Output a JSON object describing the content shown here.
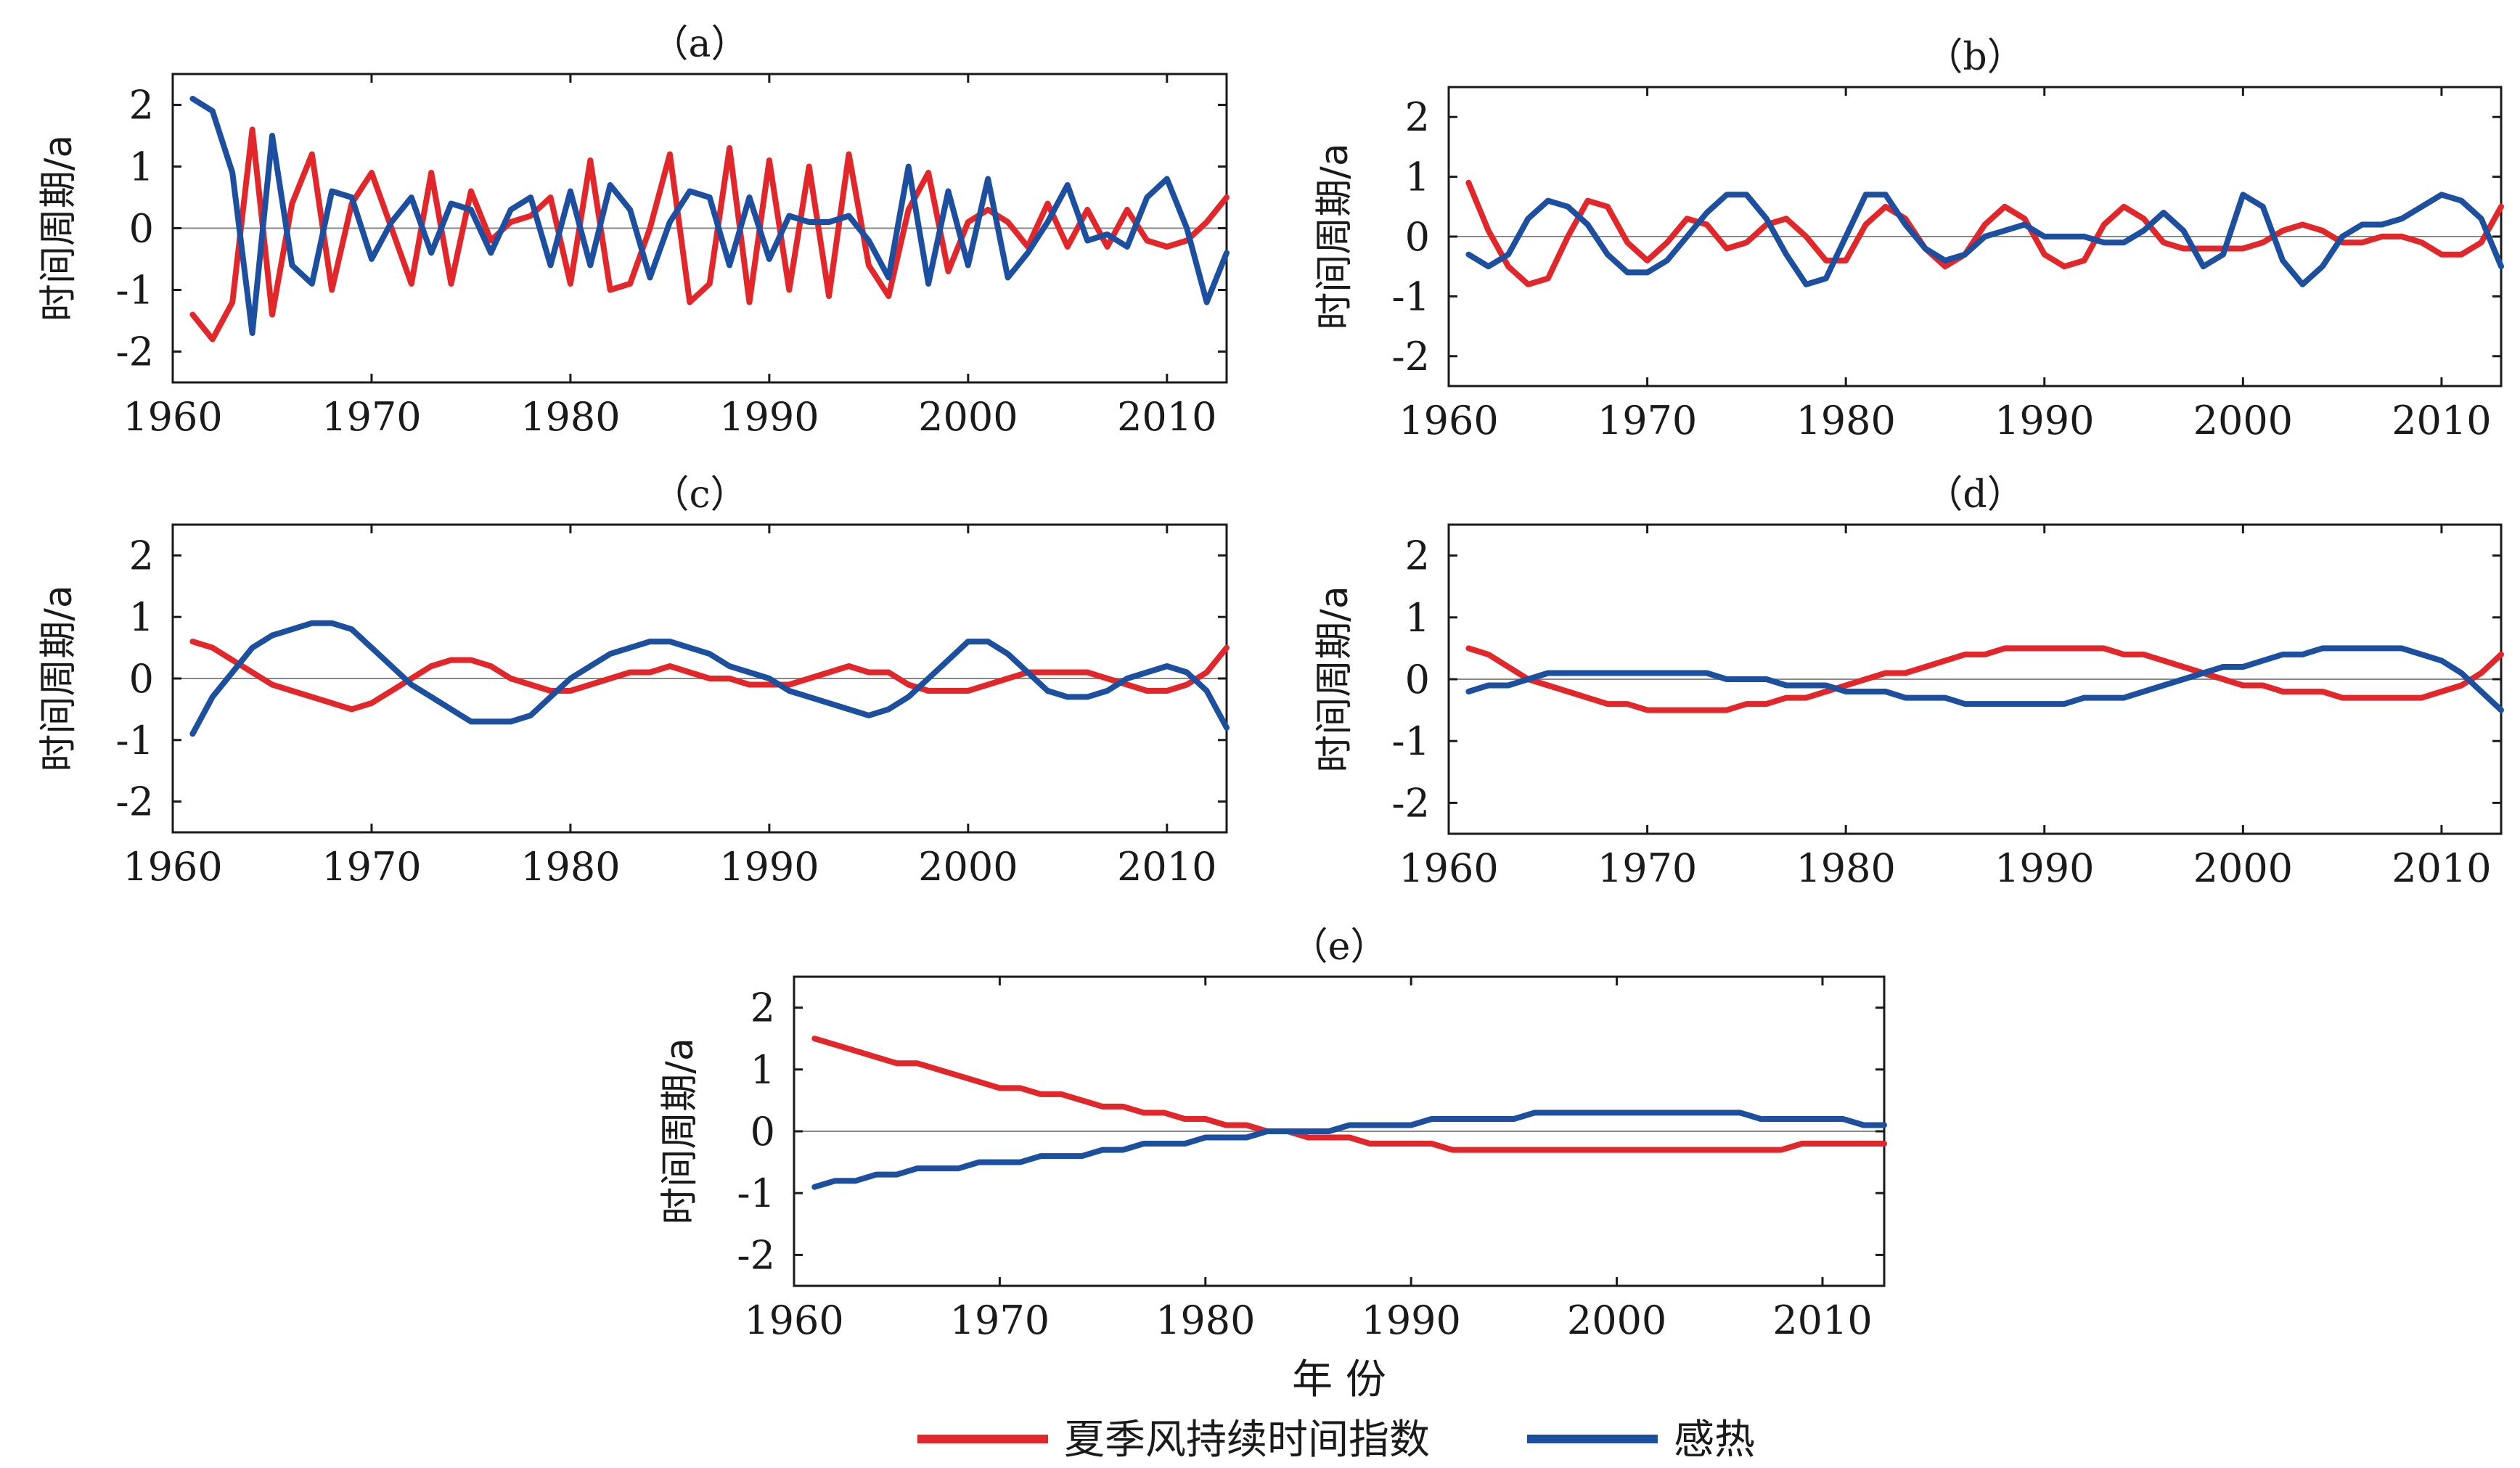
{
  "chart_data": [
    {
      "type": "line",
      "title": "（a）",
      "ylabel": "时间周期/a",
      "xlabel": "",
      "xlim": [
        1960,
        2013
      ],
      "ylim": [
        -2.5,
        2.5
      ],
      "x_ticks": [
        1960,
        1970,
        1980,
        1990,
        2000,
        2010
      ],
      "y_ticks": [
        -2,
        -1,
        0,
        1,
        2
      ],
      "x": [
        1961,
        1962,
        1963,
        1964,
        1965,
        1966,
        1967,
        1968,
        1969,
        1970,
        1971,
        1972,
        1973,
        1974,
        1975,
        1976,
        1977,
        1978,
        1979,
        1980,
        1981,
        1982,
        1983,
        1984,
        1985,
        1986,
        1987,
        1988,
        1989,
        1990,
        1991,
        1992,
        1993,
        1994,
        1995,
        1996,
        1997,
        1998,
        1999,
        2000,
        2001,
        2002,
        2003,
        2004,
        2005,
        2006,
        2007,
        2008,
        2009,
        2010,
        2011,
        2012,
        2013
      ],
      "series": [
        {
          "name": "夏季风持续时间指数",
          "color": "#e3262a",
          "values": [
            -1.4,
            -1.8,
            -1.2,
            1.6,
            -1.4,
            0.4,
            1.2,
            -1.0,
            0.4,
            0.9,
            0.0,
            -0.9,
            0.9,
            -0.9,
            0.6,
            -0.2,
            0.1,
            0.2,
            0.5,
            -0.9,
            1.1,
            -1.0,
            -0.9,
            0.0,
            1.2,
            -1.2,
            -0.9,
            1.3,
            -1.2,
            1.1,
            -1.0,
            1.0,
            -1.1,
            1.2,
            -0.6,
            -1.1,
            0.3,
            0.9,
            -0.7,
            0.1,
            0.3,
            0.1,
            -0.3,
            0.4,
            -0.3,
            0.3,
            -0.3,
            0.3,
            -0.2,
            -0.3,
            -0.2,
            0.1,
            0.5
          ]
        },
        {
          "name": "感热",
          "color": "#1d4fa0",
          "values": [
            2.1,
            1.9,
            0.9,
            -1.7,
            1.5,
            -0.6,
            -0.9,
            0.6,
            0.5,
            -0.5,
            0.1,
            0.5,
            -0.4,
            0.4,
            0.3,
            -0.4,
            0.3,
            0.5,
            -0.6,
            0.6,
            -0.6,
            0.7,
            0.3,
            -0.8,
            0.1,
            0.6,
            0.5,
            -0.6,
            0.5,
            -0.5,
            0.2,
            0.1,
            0.1,
            0.2,
            -0.2,
            -0.8,
            1.0,
            -0.9,
            0.6,
            -0.6,
            0.8,
            -0.8,
            -0.4,
            0.1,
            0.7,
            -0.2,
            -0.1,
            -0.3,
            0.5,
            0.8,
            0.0,
            -1.2,
            -0.4
          ]
        }
      ]
    },
    {
      "type": "line",
      "title": "（b）",
      "ylabel": "时间周期/a",
      "xlabel": "",
      "xlim": [
        1960,
        2013
      ],
      "ylim": [
        -2.5,
        2.5
      ],
      "x_ticks": [
        1960,
        1970,
        1980,
        1990,
        2000,
        2010
      ],
      "y_ticks": [
        -2,
        -1,
        0,
        1,
        2
      ],
      "x": [
        1961,
        1962,
        1963,
        1964,
        1965,
        1966,
        1967,
        1968,
        1969,
        1970,
        1971,
        1972,
        1973,
        1974,
        1975,
        1976,
        1977,
        1978,
        1979,
        1980,
        1981,
        1982,
        1983,
        1984,
        1985,
        1986,
        1987,
        1988,
        1989,
        1990,
        1991,
        1992,
        1993,
        1994,
        1995,
        1996,
        1997,
        1998,
        1999,
        2000,
        2001,
        2002,
        2003,
        2004,
        2005,
        2006,
        2007,
        2008,
        2009,
        2010,
        2011,
        2012,
        2013
      ],
      "series": [
        {
          "name": "夏季风持续时间指数",
          "color": "#e3262a",
          "values": [
            0.9,
            0.1,
            -0.5,
            -0.8,
            -0.7,
            0.0,
            0.6,
            0.5,
            -0.1,
            -0.4,
            -0.1,
            0.3,
            0.2,
            -0.2,
            -0.1,
            0.2,
            0.3,
            0.0,
            -0.4,
            -0.4,
            0.2,
            0.5,
            0.3,
            -0.2,
            -0.5,
            -0.3,
            0.2,
            0.5,
            0.3,
            -0.3,
            -0.5,
            -0.4,
            0.2,
            0.5,
            0.3,
            -0.1,
            -0.2,
            -0.2,
            -0.2,
            -0.2,
            -0.1,
            0.1,
            0.2,
            0.1,
            -0.1,
            -0.1,
            0.0,
            0.0,
            -0.1,
            -0.3,
            -0.3,
            -0.1,
            0.5
          ]
        },
        {
          "name": "感热",
          "color": "#1d4fa0",
          "values": [
            -0.3,
            -0.5,
            -0.3,
            0.3,
            0.6,
            0.5,
            0.2,
            -0.3,
            -0.6,
            -0.6,
            -0.4,
            0.0,
            0.4,
            0.7,
            0.7,
            0.3,
            -0.3,
            -0.8,
            -0.7,
            0.0,
            0.7,
            0.7,
            0.2,
            -0.2,
            -0.4,
            -0.3,
            0.0,
            0.1,
            0.2,
            0.0,
            0.0,
            0.0,
            -0.1,
            -0.1,
            0.1,
            0.4,
            0.1,
            -0.5,
            -0.3,
            0.7,
            0.5,
            -0.4,
            -0.8,
            -0.5,
            0.0,
            0.2,
            0.2,
            0.3,
            0.5,
            0.7,
            0.6,
            0.3,
            -0.5
          ]
        }
      ]
    },
    {
      "type": "line",
      "title": "（c）",
      "ylabel": "时间周期/a",
      "xlabel": "",
      "xlim": [
        1960,
        2013
      ],
      "ylim": [
        -2.5,
        2.5
      ],
      "x_ticks": [
        1960,
        1970,
        1980,
        1990,
        2000,
        2010
      ],
      "y_ticks": [
        -2,
        -1,
        0,
        1,
        2
      ],
      "x": [
        1961,
        1962,
        1963,
        1964,
        1965,
        1966,
        1967,
        1968,
        1969,
        1970,
        1971,
        1972,
        1973,
        1974,
        1975,
        1976,
        1977,
        1978,
        1979,
        1980,
        1981,
        1982,
        1983,
        1984,
        1985,
        1986,
        1987,
        1988,
        1989,
        1990,
        1991,
        1992,
        1993,
        1994,
        1995,
        1996,
        1997,
        1998,
        1999,
        2000,
        2001,
        2002,
        2003,
        2004,
        2005,
        2006,
        2007,
        2008,
        2009,
        2010,
        2011,
        2012,
        2013
      ],
      "series": [
        {
          "name": "夏季风持续时间指数",
          "color": "#e3262a",
          "values": [
            0.6,
            0.5,
            0.3,
            0.1,
            -0.1,
            -0.2,
            -0.3,
            -0.4,
            -0.5,
            -0.4,
            -0.2,
            0.0,
            0.2,
            0.3,
            0.3,
            0.2,
            0.0,
            -0.1,
            -0.2,
            -0.2,
            -0.1,
            0.0,
            0.1,
            0.1,
            0.2,
            0.1,
            0.0,
            0.0,
            -0.1,
            -0.1,
            -0.1,
            0.0,
            0.1,
            0.2,
            0.1,
            0.1,
            -0.1,
            -0.2,
            -0.2,
            -0.2,
            -0.1,
            0.0,
            0.1,
            0.1,
            0.1,
            0.1,
            0.0,
            -0.1,
            -0.2,
            -0.2,
            -0.1,
            0.1,
            0.5
          ]
        },
        {
          "name": "感热",
          "color": "#1d4fa0",
          "values": [
            -0.9,
            -0.3,
            0.1,
            0.5,
            0.7,
            0.8,
            0.9,
            0.9,
            0.8,
            0.5,
            0.2,
            -0.1,
            -0.3,
            -0.5,
            -0.7,
            -0.7,
            -0.7,
            -0.6,
            -0.3,
            0.0,
            0.2,
            0.4,
            0.5,
            0.6,
            0.6,
            0.5,
            0.4,
            0.2,
            0.1,
            0.0,
            -0.2,
            -0.3,
            -0.4,
            -0.5,
            -0.6,
            -0.5,
            -0.3,
            0.0,
            0.3,
            0.6,
            0.6,
            0.4,
            0.1,
            -0.2,
            -0.3,
            -0.3,
            -0.2,
            0.0,
            0.1,
            0.2,
            0.1,
            -0.2,
            -0.8
          ]
        }
      ]
    },
    {
      "type": "line",
      "title": "（d）",
      "ylabel": "时间周期/a",
      "xlabel": "",
      "xlim": [
        1960,
        2013
      ],
      "ylim": [
        -2.5,
        2.5
      ],
      "x_ticks": [
        1960,
        1970,
        1980,
        1990,
        2000,
        2010
      ],
      "y_ticks": [
        -2,
        -1,
        0,
        1,
        2
      ],
      "x": [
        1961,
        1962,
        1963,
        1964,
        1965,
        1966,
        1967,
        1968,
        1969,
        1970,
        1971,
        1972,
        1973,
        1974,
        1975,
        1976,
        1977,
        1978,
        1979,
        1980,
        1981,
        1982,
        1983,
        1984,
        1985,
        1986,
        1987,
        1988,
        1989,
        1990,
        1991,
        1992,
        1993,
        1994,
        1995,
        1996,
        1997,
        1998,
        1999,
        2000,
        2001,
        2002,
        2003,
        2004,
        2005,
        2006,
        2007,
        2008,
        2009,
        2010,
        2011,
        2012,
        2013
      ],
      "series": [
        {
          "name": "夏季风持续时间指数",
          "color": "#e3262a",
          "values": [
            0.5,
            0.4,
            0.2,
            0.0,
            -0.1,
            -0.2,
            -0.3,
            -0.4,
            -0.4,
            -0.5,
            -0.5,
            -0.5,
            -0.5,
            -0.5,
            -0.4,
            -0.4,
            -0.3,
            -0.3,
            -0.2,
            -0.1,
            0.0,
            0.1,
            0.1,
            0.2,
            0.3,
            0.4,
            0.4,
            0.5,
            0.5,
            0.5,
            0.5,
            0.5,
            0.5,
            0.4,
            0.4,
            0.3,
            0.2,
            0.1,
            0.0,
            -0.1,
            -0.1,
            -0.2,
            -0.2,
            -0.2,
            -0.3,
            -0.3,
            -0.3,
            -0.3,
            -0.3,
            -0.2,
            -0.1,
            0.1,
            0.4
          ]
        },
        {
          "name": "感热",
          "color": "#1d4fa0",
          "values": [
            -0.2,
            -0.1,
            -0.1,
            0.0,
            0.1,
            0.1,
            0.1,
            0.1,
            0.1,
            0.1,
            0.1,
            0.1,
            0.1,
            0.0,
            0.0,
            0.0,
            -0.1,
            -0.1,
            -0.1,
            -0.2,
            -0.2,
            -0.2,
            -0.3,
            -0.3,
            -0.3,
            -0.4,
            -0.4,
            -0.4,
            -0.4,
            -0.4,
            -0.4,
            -0.3,
            -0.3,
            -0.3,
            -0.2,
            -0.1,
            0.0,
            0.1,
            0.2,
            0.2,
            0.3,
            0.4,
            0.4,
            0.5,
            0.5,
            0.5,
            0.5,
            0.5,
            0.4,
            0.3,
            0.1,
            -0.2,
            -0.5
          ]
        }
      ]
    },
    {
      "type": "line",
      "title": "（e）",
      "ylabel": "时间周期/a",
      "xlabel": "年 份",
      "xlim": [
        1960,
        2013
      ],
      "ylim": [
        -2.5,
        2.5
      ],
      "x_ticks": [
        1960,
        1970,
        1980,
        1990,
        2000,
        2010
      ],
      "y_ticks": [
        -2,
        -1,
        0,
        1,
        2
      ],
      "x": [
        1961,
        1962,
        1963,
        1964,
        1965,
        1966,
        1967,
        1968,
        1969,
        1970,
        1971,
        1972,
        1973,
        1974,
        1975,
        1976,
        1977,
        1978,
        1979,
        1980,
        1981,
        1982,
        1983,
        1984,
        1985,
        1986,
        1987,
        1988,
        1989,
        1990,
        1991,
        1992,
        1993,
        1994,
        1995,
        1996,
        1997,
        1998,
        1999,
        2000,
        2001,
        2002,
        2003,
        2004,
        2005,
        2006,
        2007,
        2008,
        2009,
        2010,
        2011,
        2012,
        2013
      ],
      "series": [
        {
          "name": "夏季风持续时间指数",
          "color": "#e3262a",
          "values": [
            1.5,
            1.4,
            1.3,
            1.2,
            1.1,
            1.1,
            1.0,
            0.9,
            0.8,
            0.7,
            0.7,
            0.6,
            0.6,
            0.5,
            0.4,
            0.4,
            0.3,
            0.3,
            0.2,
            0.2,
            0.1,
            0.1,
            0.0,
            0.0,
            -0.1,
            -0.1,
            -0.1,
            -0.2,
            -0.2,
            -0.2,
            -0.2,
            -0.3,
            -0.3,
            -0.3,
            -0.3,
            -0.3,
            -0.3,
            -0.3,
            -0.3,
            -0.3,
            -0.3,
            -0.3,
            -0.3,
            -0.3,
            -0.3,
            -0.3,
            -0.3,
            -0.3,
            -0.2,
            -0.2,
            -0.2,
            -0.2,
            -0.2
          ]
        },
        {
          "name": "感热",
          "color": "#1d4fa0",
          "values": [
            -0.9,
            -0.8,
            -0.8,
            -0.7,
            -0.7,
            -0.6,
            -0.6,
            -0.6,
            -0.5,
            -0.5,
            -0.5,
            -0.4,
            -0.4,
            -0.4,
            -0.3,
            -0.3,
            -0.2,
            -0.2,
            -0.2,
            -0.1,
            -0.1,
            -0.1,
            0.0,
            0.0,
            0.0,
            0.0,
            0.1,
            0.1,
            0.1,
            0.1,
            0.2,
            0.2,
            0.2,
            0.2,
            0.2,
            0.3,
            0.3,
            0.3,
            0.3,
            0.3,
            0.3,
            0.3,
            0.3,
            0.3,
            0.3,
            0.3,
            0.2,
            0.2,
            0.2,
            0.2,
            0.2,
            0.1,
            0.1
          ]
        }
      ]
    }
  ],
  "legend": {
    "placement": "bottom-center",
    "items": [
      {
        "label": "夏季风持续时间指数",
        "color": "#e3262a"
      },
      {
        "label": "感热",
        "color": "#1d4fa0"
      }
    ]
  }
}
